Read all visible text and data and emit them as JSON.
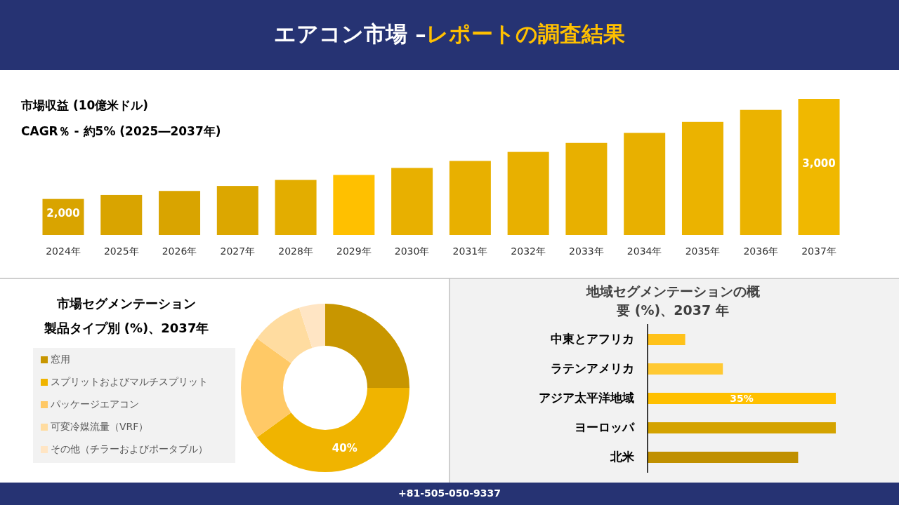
{
  "chart_data": [
    {
      "type": "bar",
      "title": "市場収益 (10億米ドル)",
      "subtitle": "CAGR％ - 約5% (2025―2037年)",
      "annotations": [
        "エアコン市場 –**レポートの調査結果**",
        "+81-505-050-9337"
      ],
      "ylim": [
        1640,
        3000
      ],
      "tick_labels": "x",
      "categories": [
        "2024年",
        "2025年",
        "2026年",
        "2027年",
        "2028年",
        "2029年",
        "2030年",
        "2031年",
        "2032年",
        "2033年",
        "2034年",
        "2035年",
        "2036年",
        "2037年"
      ],
      "values": [
        2000,
        2040,
        2080,
        2130,
        2190,
        2240,
        2310,
        2380,
        2470,
        2560,
        2660,
        2770,
        2890,
        3000
      ],
      "colors": [
        "#d9a400",
        "#d9a400",
        "#d9a400",
        "#dca700",
        "#e3ad00",
        "#ffc000",
        "#e8b000",
        "#e8b000",
        "#e8b000",
        "#e8b000",
        "#e8b000",
        "#ebb300",
        "#ebb300",
        "#f0b800"
      ],
      "value_labels": [
        "2,000",
        null,
        null,
        null,
        null,
        null,
        null,
        null,
        null,
        null,
        null,
        null,
        null,
        "3,000"
      ]
    },
    {
      "type": "donut",
      "title": "市場セグメンテーション",
      "subtitle": "製品タイプ別 (%)、2037年",
      "legend": "left",
      "categories": [
        "窓用",
        "スプリットおよびマルチスプリット",
        "パッケージエアコン",
        "可変冷媒流量（VRF）",
        "その他（チラーおよびポータブル）"
      ],
      "values": [
        25,
        40,
        20,
        10,
        5
      ],
      "colors": [
        "#c89600",
        "#f0b400",
        "#ffc966",
        "#ffdca0",
        "#ffe5c4"
      ],
      "value_labels": [
        null,
        "40%",
        null,
        null,
        null
      ]
    },
    {
      "type": "bar",
      "orientation": "horizontal",
      "title": "地域セグメンテーションの概要 (%)、2037 年",
      "categories": [
        "中東とアフリカ",
        "ラテンアメリカ",
        "アジア太平洋地域",
        "ヨーロッパ",
        "北米"
      ],
      "values": [
        7,
        14,
        35,
        35,
        28
      ],
      "colors": [
        "#ffc21a",
        "#ffc933",
        "#ffc000",
        "#d4a300",
        "#c09000"
      ],
      "value_labels": [
        null,
        null,
        "35%",
        null,
        null
      ]
    }
  ]
}
